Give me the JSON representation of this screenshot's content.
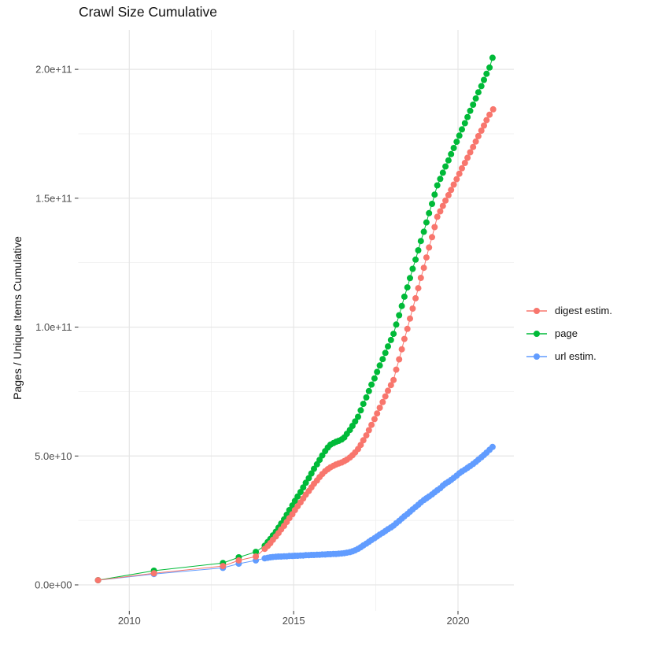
{
  "title": "Crawl Size Cumulative",
  "y_axis": {
    "label": "Pages / Unique Items Cumulative",
    "ticks": [
      "0.0e+00",
      "5.0e+10",
      "1.0e+11",
      "1.5e+11",
      "2.0e+11"
    ],
    "tick_values_e9": [
      0,
      50,
      100,
      150,
      200
    ]
  },
  "x_axis": {
    "ticks": [
      "2010",
      "2015",
      "2020"
    ],
    "tick_values": [
      2010,
      2015,
      2020
    ]
  },
  "legend": {
    "items": [
      {
        "label": "digest estim.",
        "color": "#F8766D",
        "slug": "digest-estim"
      },
      {
        "label": "page",
        "color": "#00BA38",
        "slug": "page"
      },
      {
        "label": "url estim.",
        "color": "#619CFF",
        "slug": "url-estim"
      }
    ]
  },
  "chart_data": {
    "type": "line",
    "title": "Crawl Size Cumulative",
    "xlabel": "",
    "ylabel": "Pages / Unique Items Cumulative",
    "x_unit": "year (decimal)",
    "y_unit": "pages (billions, 1e9)",
    "xlim": [
      2008.45,
      2021.67
    ],
    "ylim_e9": [
      -10,
      215
    ],
    "grid": {
      "x_major": [
        2010,
        2015,
        2020
      ],
      "x_minor": [
        2012.5,
        2017.5
      ],
      "y_major_e9": [
        0,
        50,
        100,
        150,
        200
      ],
      "y_minor_e9": [
        25,
        75,
        125,
        175
      ]
    },
    "legend_position": "right",
    "series": [
      {
        "name": "digest estim.",
        "color": "#F8766D",
        "points": [
          [
            2009.05,
            1.8
          ],
          [
            2010.75,
            4.5
          ],
          [
            2012.85,
            7.3
          ],
          [
            2013.33,
            9.5
          ],
          [
            2013.85,
            11.0
          ],
          [
            2014.12,
            14.0
          ],
          [
            2014.21,
            15.1
          ],
          [
            2014.29,
            16.2
          ],
          [
            2014.37,
            17.5
          ],
          [
            2014.46,
            18.8
          ],
          [
            2014.54,
            20.1
          ],
          [
            2014.62,
            21.5
          ],
          [
            2014.71,
            22.9
          ],
          [
            2014.79,
            24.4
          ],
          [
            2014.87,
            25.9
          ],
          [
            2014.96,
            27.4
          ],
          [
            2015.04,
            29.0
          ],
          [
            2015.12,
            30.5
          ],
          [
            2015.21,
            32.0
          ],
          [
            2015.29,
            33.5
          ],
          [
            2015.37,
            35.0
          ],
          [
            2015.46,
            36.4
          ],
          [
            2015.54,
            37.8
          ],
          [
            2015.62,
            39.2
          ],
          [
            2015.71,
            40.5
          ],
          [
            2015.79,
            41.8
          ],
          [
            2015.87,
            43.0
          ],
          [
            2015.96,
            44.1
          ],
          [
            2016.04,
            44.9
          ],
          [
            2016.12,
            45.6
          ],
          [
            2016.21,
            46.2
          ],
          [
            2016.29,
            46.7
          ],
          [
            2016.37,
            47.1
          ],
          [
            2016.46,
            47.5
          ],
          [
            2016.54,
            48.0
          ],
          [
            2016.62,
            48.6
          ],
          [
            2016.71,
            49.4
          ],
          [
            2016.79,
            50.3
          ],
          [
            2016.87,
            51.4
          ],
          [
            2016.96,
            52.7
          ],
          [
            2017.04,
            54.3
          ],
          [
            2017.12,
            56.1
          ],
          [
            2017.21,
            58.0
          ],
          [
            2017.29,
            60.0
          ],
          [
            2017.37,
            62.1
          ],
          [
            2017.46,
            64.3
          ],
          [
            2017.54,
            66.5
          ],
          [
            2017.62,
            68.7
          ],
          [
            2017.71,
            70.9
          ],
          [
            2017.79,
            73.1
          ],
          [
            2017.87,
            75.3
          ],
          [
            2017.96,
            77.5
          ],
          [
            2018.04,
            79.5
          ],
          [
            2018.12,
            83.5
          ],
          [
            2018.21,
            87.5
          ],
          [
            2018.29,
            91.4
          ],
          [
            2018.37,
            95.4
          ],
          [
            2018.46,
            99.3
          ],
          [
            2018.54,
            103.3
          ],
          [
            2018.62,
            107.2
          ],
          [
            2018.71,
            111.2
          ],
          [
            2018.79,
            115.1
          ],
          [
            2018.87,
            119.1
          ],
          [
            2018.96,
            123.0
          ],
          [
            2019.04,
            127.0
          ],
          [
            2019.12,
            130.9
          ],
          [
            2019.21,
            134.9
          ],
          [
            2019.29,
            138.8
          ],
          [
            2019.37,
            142.8
          ],
          [
            2019.46,
            144.9
          ],
          [
            2019.54,
            147.0
          ],
          [
            2019.62,
            149.1
          ],
          [
            2019.71,
            151.2
          ],
          [
            2019.79,
            153.2
          ],
          [
            2019.87,
            155.3
          ],
          [
            2019.96,
            157.4
          ],
          [
            2020.04,
            159.5
          ],
          [
            2020.12,
            161.6
          ],
          [
            2020.21,
            163.7
          ],
          [
            2020.29,
            165.7
          ],
          [
            2020.37,
            167.8
          ],
          [
            2020.46,
            169.9
          ],
          [
            2020.54,
            172.0
          ],
          [
            2020.62,
            174.1
          ],
          [
            2020.71,
            176.2
          ],
          [
            2020.79,
            178.2
          ],
          [
            2020.87,
            180.3
          ],
          [
            2020.96,
            182.4
          ],
          [
            2021.07,
            184.5
          ]
        ]
      },
      {
        "name": "page",
        "color": "#00BA38",
        "points": [
          [
            2009.05,
            1.8
          ],
          [
            2010.75,
            5.5
          ],
          [
            2012.85,
            8.5
          ],
          [
            2013.33,
            10.7
          ],
          [
            2013.85,
            12.8
          ],
          [
            2014.12,
            15.2
          ],
          [
            2014.21,
            16.6
          ],
          [
            2014.29,
            17.8
          ],
          [
            2014.37,
            19.2
          ],
          [
            2014.46,
            20.6
          ],
          [
            2014.54,
            22.2
          ],
          [
            2014.62,
            23.8
          ],
          [
            2014.71,
            25.4
          ],
          [
            2014.79,
            27.2
          ],
          [
            2014.87,
            29.0
          ],
          [
            2014.96,
            30.8
          ],
          [
            2015.04,
            32.6
          ],
          [
            2015.12,
            34.3
          ],
          [
            2015.21,
            36.0
          ],
          [
            2015.29,
            37.8
          ],
          [
            2015.37,
            39.6
          ],
          [
            2015.46,
            41.4
          ],
          [
            2015.54,
            43.2
          ],
          [
            2015.62,
            45.0
          ],
          [
            2015.71,
            46.8
          ],
          [
            2015.79,
            48.5
          ],
          [
            2015.87,
            50.2
          ],
          [
            2015.96,
            51.9
          ],
          [
            2016.04,
            53.3
          ],
          [
            2016.12,
            54.4
          ],
          [
            2016.21,
            55.0
          ],
          [
            2016.29,
            55.5
          ],
          [
            2016.37,
            55.9
          ],
          [
            2016.46,
            56.4
          ],
          [
            2016.54,
            57.2
          ],
          [
            2016.62,
            58.6
          ],
          [
            2016.71,
            60.1
          ],
          [
            2016.79,
            61.7
          ],
          [
            2016.87,
            63.4
          ],
          [
            2016.96,
            65.2
          ],
          [
            2017.04,
            67.7
          ],
          [
            2017.12,
            70.2
          ],
          [
            2017.21,
            72.7
          ],
          [
            2017.29,
            75.2
          ],
          [
            2017.37,
            77.7
          ],
          [
            2017.46,
            80.1
          ],
          [
            2017.54,
            82.6
          ],
          [
            2017.62,
            85.1
          ],
          [
            2017.71,
            87.6
          ],
          [
            2017.79,
            90.0
          ],
          [
            2017.87,
            92.5
          ],
          [
            2017.96,
            95.0
          ],
          [
            2018.04,
            97.4
          ],
          [
            2018.12,
            101.0
          ],
          [
            2018.21,
            104.6
          ],
          [
            2018.29,
            108.2
          ],
          [
            2018.37,
            111.8
          ],
          [
            2018.46,
            115.4
          ],
          [
            2018.54,
            119.0
          ],
          [
            2018.62,
            122.6
          ],
          [
            2018.71,
            126.2
          ],
          [
            2018.79,
            129.8
          ],
          [
            2018.87,
            133.4
          ],
          [
            2018.96,
            137.0
          ],
          [
            2019.04,
            140.6
          ],
          [
            2019.12,
            144.2
          ],
          [
            2019.21,
            147.8
          ],
          [
            2019.29,
            151.4
          ],
          [
            2019.37,
            155.0
          ],
          [
            2019.46,
            157.5
          ],
          [
            2019.54,
            159.9
          ],
          [
            2019.62,
            162.3
          ],
          [
            2019.71,
            164.7
          ],
          [
            2019.79,
            167.1
          ],
          [
            2019.87,
            169.5
          ],
          [
            2019.96,
            171.9
          ],
          [
            2020.04,
            174.3
          ],
          [
            2020.12,
            176.7
          ],
          [
            2020.21,
            179.1
          ],
          [
            2020.29,
            181.5
          ],
          [
            2020.37,
            183.9
          ],
          [
            2020.46,
            186.3
          ],
          [
            2020.54,
            188.7
          ],
          [
            2020.62,
            191.1
          ],
          [
            2020.71,
            193.5
          ],
          [
            2020.79,
            195.9
          ],
          [
            2020.87,
            198.3
          ],
          [
            2020.96,
            200.7
          ],
          [
            2021.05,
            204.5
          ]
        ]
      },
      {
        "name": "url estim.",
        "color": "#619CFF",
        "points": [
          [
            2009.05,
            1.8
          ],
          [
            2010.75,
            4.2
          ],
          [
            2012.85,
            6.6
          ],
          [
            2013.33,
            8.2
          ],
          [
            2013.85,
            9.5
          ],
          [
            2014.12,
            10.3
          ],
          [
            2014.21,
            10.5
          ],
          [
            2014.29,
            10.7
          ],
          [
            2014.37,
            10.8
          ],
          [
            2014.46,
            10.9
          ],
          [
            2014.54,
            11.0
          ],
          [
            2014.62,
            11.0
          ],
          [
            2014.71,
            11.1
          ],
          [
            2014.79,
            11.1
          ],
          [
            2014.87,
            11.2
          ],
          [
            2014.96,
            11.2
          ],
          [
            2015.04,
            11.3
          ],
          [
            2015.12,
            11.3
          ],
          [
            2015.21,
            11.4
          ],
          [
            2015.29,
            11.4
          ],
          [
            2015.37,
            11.5
          ],
          [
            2015.46,
            11.5
          ],
          [
            2015.54,
            11.6
          ],
          [
            2015.62,
            11.6
          ],
          [
            2015.71,
            11.7
          ],
          [
            2015.79,
            11.7
          ],
          [
            2015.87,
            11.8
          ],
          [
            2015.96,
            11.8
          ],
          [
            2016.04,
            11.9
          ],
          [
            2016.12,
            11.9
          ],
          [
            2016.21,
            12.0
          ],
          [
            2016.29,
            12.0
          ],
          [
            2016.37,
            12.1
          ],
          [
            2016.46,
            12.2
          ],
          [
            2016.54,
            12.3
          ],
          [
            2016.62,
            12.5
          ],
          [
            2016.71,
            12.7
          ],
          [
            2016.79,
            13.0
          ],
          [
            2016.87,
            13.4
          ],
          [
            2016.96,
            14.0
          ],
          [
            2017.04,
            14.6
          ],
          [
            2017.12,
            15.3
          ],
          [
            2017.21,
            16.0
          ],
          [
            2017.29,
            16.7
          ],
          [
            2017.37,
            17.4
          ],
          [
            2017.46,
            18.1
          ],
          [
            2017.54,
            18.8
          ],
          [
            2017.62,
            19.5
          ],
          [
            2017.71,
            20.2
          ],
          [
            2017.79,
            20.9
          ],
          [
            2017.87,
            21.6
          ],
          [
            2017.96,
            22.3
          ],
          [
            2018.04,
            23.0
          ],
          [
            2018.12,
            23.9
          ],
          [
            2018.21,
            24.8
          ],
          [
            2018.29,
            25.7
          ],
          [
            2018.37,
            26.6
          ],
          [
            2018.46,
            27.5
          ],
          [
            2018.54,
            28.4
          ],
          [
            2018.62,
            29.3
          ],
          [
            2018.71,
            30.2
          ],
          [
            2018.79,
            31.1
          ],
          [
            2018.87,
            32.0
          ],
          [
            2018.96,
            32.9
          ],
          [
            2019.04,
            33.6
          ],
          [
            2019.12,
            34.3
          ],
          [
            2019.21,
            35.1
          ],
          [
            2019.29,
            35.9
          ],
          [
            2019.37,
            36.7
          ],
          [
            2019.46,
            37.5
          ],
          [
            2019.54,
            38.5
          ],
          [
            2019.62,
            39.3
          ],
          [
            2019.71,
            40.0
          ],
          [
            2019.79,
            40.7
          ],
          [
            2019.87,
            41.5
          ],
          [
            2019.96,
            42.4
          ],
          [
            2020.04,
            43.3
          ],
          [
            2020.12,
            44.0
          ],
          [
            2020.21,
            44.7
          ],
          [
            2020.29,
            45.4
          ],
          [
            2020.37,
            46.1
          ],
          [
            2020.46,
            46.9
          ],
          [
            2020.54,
            47.7
          ],
          [
            2020.62,
            48.6
          ],
          [
            2020.71,
            49.5
          ],
          [
            2020.79,
            50.4
          ],
          [
            2020.87,
            51.3
          ],
          [
            2020.96,
            52.4
          ],
          [
            2021.05,
            53.5
          ]
        ]
      }
    ]
  }
}
